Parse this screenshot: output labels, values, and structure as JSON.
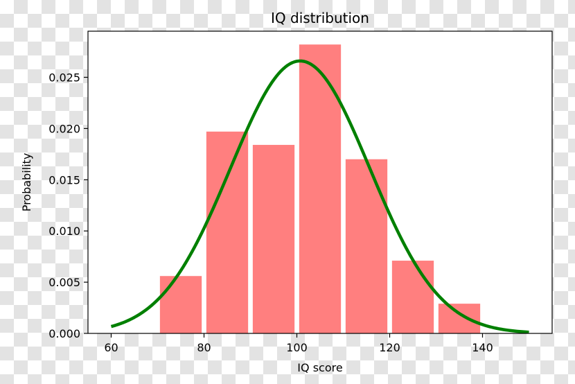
{
  "chart_data": {
    "type": "bar",
    "title": "IQ distribution",
    "xlabel": "IQ score",
    "ylabel": "Probability",
    "xlim": [
      55,
      155
    ],
    "ylim": [
      0,
      0.0295
    ],
    "xticks": [
      60,
      80,
      100,
      120,
      140
    ],
    "xtick_labels": [
      "60",
      "80",
      "100",
      "120",
      "140"
    ],
    "yticks": [
      0,
      0.005,
      0.01,
      0.015,
      0.02,
      0.025
    ],
    "ytick_labels": [
      "0.000",
      "0.005",
      "0.010",
      "0.015",
      "0.020",
      "0.025"
    ],
    "grid": false,
    "legend": "none",
    "bars": [
      {
        "x_start": 70,
        "x_end": 80,
        "value": 0.0056
      },
      {
        "x_start": 80,
        "x_end": 90,
        "value": 0.0197
      },
      {
        "x_start": 90,
        "x_end": 100,
        "value": 0.0184
      },
      {
        "x_start": 100,
        "x_end": 110,
        "value": 0.0282
      },
      {
        "x_start": 110,
        "x_end": 120,
        "value": 0.017
      },
      {
        "x_start": 120,
        "x_end": 130,
        "value": 0.0071
      },
      {
        "x_start": 130,
        "x_end": 140,
        "value": 0.0029
      }
    ],
    "curve": {
      "type": "line",
      "kind": "normal-pdf",
      "mean": 100.7,
      "std": 15,
      "x_range": [
        60,
        150
      ]
    },
    "colors": {
      "bars": "#ff7f7f",
      "curve": "#008000"
    }
  }
}
